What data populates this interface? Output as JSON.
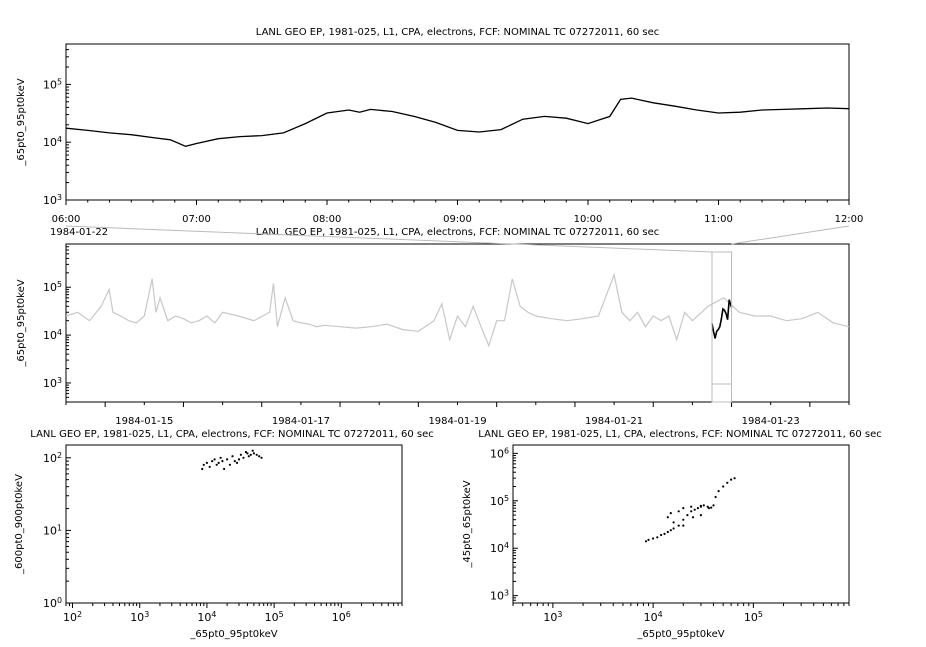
{
  "chart_data": [
    {
      "type": "line",
      "title": "LANL GEO EP, 1981-025, L1, CPA, electrons, FCF: NOMINAL TC 07272011, 60 sec",
      "ylabel": "_65pt0_95pt0keV",
      "xlabel": "",
      "yscale": "log",
      "ylim": [
        1000,
        500000
      ],
      "xlim": [
        "1984-01-22 06:00",
        "1984-01-22 12:00"
      ],
      "y_ticks": [
        "10^3",
        "10^4",
        "10^5"
      ],
      "x_ticks": [
        "06:00",
        "07:00",
        "08:00",
        "09:00",
        "10:00",
        "11:00",
        "12:00"
      ],
      "x_date_label": "1984-01-22",
      "series": [
        {
          "color": "#000000",
          "x": [
            "06:00",
            "06:10",
            "06:20",
            "06:30",
            "06:40",
            "06:48",
            "06:55",
            "07:00",
            "07:10",
            "07:20",
            "07:30",
            "07:40",
            "07:50",
            "08:00",
            "08:10",
            "08:15",
            "08:20",
            "08:30",
            "08:40",
            "08:50",
            "09:00",
            "09:10",
            "09:20",
            "09:30",
            "09:40",
            "09:50",
            "10:00",
            "10:10",
            "10:15",
            "10:20",
            "10:30",
            "10:40",
            "10:50",
            "11:00",
            "11:10",
            "11:20",
            "11:30",
            "11:40",
            "11:50",
            "12:00"
          ],
          "y": [
            17500,
            16000,
            14500,
            13500,
            12000,
            11000,
            8500,
            9500,
            11500,
            12500,
            13000,
            14500,
            21000,
            32000,
            36000,
            33000,
            37000,
            34000,
            28000,
            22000,
            16000,
            15000,
            16500,
            25000,
            28000,
            26000,
            21000,
            28000,
            55000,
            58000,
            48000,
            42000,
            36000,
            32000,
            33000,
            36000,
            37000,
            38000,
            39000,
            38000
          ]
        }
      ]
    },
    {
      "type": "line",
      "title": "LANL GEO EP, 1981-025, L1, CPA, electrons, FCF: NOMINAL TC 07272011, 60 sec",
      "ylabel": "_65pt0_95pt0keV",
      "xlabel": "",
      "yscale": "log",
      "ylim": [
        400,
        800000
      ],
      "xlim": [
        "1984-01-14",
        "1984-01-24"
      ],
      "x_ticks": [
        "1984-01-15",
        "1984-01-17",
        "1984-01-19",
        "1984-01-21",
        "1984-01-23"
      ],
      "y_ticks": [
        "10^3",
        "10^4",
        "10^5"
      ],
      "series": [
        {
          "name": "",
          "color": "#c8c8c8",
          "x_days": [
            0,
            0.15,
            0.3,
            0.45,
            0.55,
            0.6,
            0.7,
            0.8,
            0.9,
            1.0,
            1.1,
            1.15,
            1.2,
            1.3,
            1.4,
            1.5,
            1.6,
            1.7,
            1.8,
            1.9,
            2.0,
            2.2,
            2.4,
            2.6,
            2.65,
            2.7,
            2.8,
            2.9,
            3.0,
            3.1,
            3.2,
            3.3,
            3.5,
            3.7,
            3.9,
            4.1,
            4.3,
            4.5,
            4.7,
            4.8,
            4.9,
            5.0,
            5.1,
            5.2,
            5.3,
            5.4,
            5.5,
            5.6,
            5.7,
            5.8,
            5.9,
            6.0,
            6.2,
            6.4,
            6.6,
            6.8,
            7.0,
            7.1,
            7.2,
            7.3,
            7.4,
            7.5,
            7.6,
            7.7,
            7.8,
            7.9,
            8.0,
            8.2,
            8.4,
            8.6,
            8.8,
            9.0,
            9.2,
            9.4,
            9.6,
            9.8,
            10.0
          ],
          "y": [
            25000,
            30000,
            20000,
            40000,
            90000,
            30000,
            25000,
            20000,
            18000,
            25000,
            150000,
            30000,
            60000,
            20000,
            25000,
            22000,
            18000,
            20000,
            25000,
            18000,
            30000,
            25000,
            20000,
            30000,
            120000,
            15000,
            60000,
            20000,
            18000,
            17000,
            15000,
            16000,
            15000,
            14000,
            15000,
            17000,
            13000,
            12000,
            20000,
            45000,
            8000,
            25000,
            15000,
            40000,
            15000,
            6000,
            20000,
            20000,
            150000,
            40000,
            30000,
            25000,
            22000,
            20000,
            22000,
            25000,
            180000,
            30000,
            20000,
            30000,
            15000,
            25000,
            20000,
            25000,
            8000,
            30000,
            20000,
            40000,
            60000,
            30000,
            25000,
            25000,
            20000,
            22000,
            30000,
            18000,
            15000
          ]
        },
        {
          "name": "",
          "color": "#000000",
          "x_days": [
            8.25,
            8.27,
            8.29,
            8.31,
            8.33,
            8.35,
            8.37,
            8.39,
            8.41,
            8.43,
            8.45,
            8.47,
            8.5
          ],
          "y": [
            17500,
            12000,
            8500,
            12000,
            13000,
            15000,
            22000,
            35000,
            33000,
            28000,
            21000,
            55000,
            38000
          ]
        }
      ]
    },
    {
      "type": "scatter",
      "title": "LANL GEO EP, 1981-025, L1, CPA, electrons, FCF: NOMINAL TC 07272011, 60 sec",
      "xlabel": "_65pt0_95pt0keV",
      "ylabel": "_600pt0_900pt0keV",
      "xscale": "log",
      "yscale": "log",
      "xlim": [
        80,
        8000000
      ],
      "ylim": [
        1,
        150
      ],
      "x_ticks": [
        "10^2",
        "10^3",
        "10^4",
        "10^5",
        "10^6"
      ],
      "y_ticks": [
        "10^0",
        "10^1",
        "10^2"
      ],
      "points": [
        [
          8500,
          70
        ],
        [
          9000,
          80
        ],
        [
          10000,
          85
        ],
        [
          11000,
          75
        ],
        [
          12000,
          90
        ],
        [
          13000,
          95
        ],
        [
          14000,
          80
        ],
        [
          15000,
          85
        ],
        [
          16000,
          100
        ],
        [
          17000,
          90
        ],
        [
          18000,
          70
        ],
        [
          20000,
          95
        ],
        [
          22000,
          80
        ],
        [
          24000,
          105
        ],
        [
          26000,
          90
        ],
        [
          28000,
          85
        ],
        [
          30000,
          95
        ],
        [
          32000,
          110
        ],
        [
          35000,
          100
        ],
        [
          38000,
          120
        ],
        [
          40000,
          115
        ],
        [
          42000,
          105
        ],
        [
          45000,
          110
        ],
        [
          48000,
          125
        ],
        [
          50000,
          115
        ],
        [
          55000,
          110
        ],
        [
          60000,
          105
        ],
        [
          65000,
          100
        ]
      ]
    },
    {
      "type": "scatter",
      "title": "LANL GEO EP, 1981-025, L1, CPA, electrons, FCF: NOMINAL TC 07272011, 60 sec",
      "xlabel": "_65pt0_95pt0keV",
      "ylabel": "_45pt0_65pt0keV",
      "xscale": "log",
      "yscale": "log",
      "xlim": [
        400,
        900000
      ],
      "ylim": [
        700,
        1500000
      ],
      "x_ticks": [
        "10^3",
        "10^4",
        "10^5"
      ],
      "y_ticks": [
        "10^3",
        "10^4",
        "10^5",
        "10^6"
      ],
      "points": [
        [
          8500,
          14000
        ],
        [
          9000,
          15000
        ],
        [
          10000,
          16000
        ],
        [
          11000,
          17000
        ],
        [
          12000,
          19000
        ],
        [
          13000,
          20000
        ],
        [
          14000,
          22000
        ],
        [
          15000,
          24000
        ],
        [
          16000,
          26000
        ],
        [
          18000,
          30000
        ],
        [
          20000,
          40000
        ],
        [
          22000,
          50000
        ],
        [
          24000,
          60000
        ],
        [
          26000,
          65000
        ],
        [
          28000,
          70000
        ],
        [
          30000,
          75000
        ],
        [
          32000,
          80000
        ],
        [
          35000,
          75000
        ],
        [
          38000,
          72000
        ],
        [
          40000,
          80000
        ],
        [
          42000,
          120000
        ],
        [
          45000,
          160000
        ],
        [
          50000,
          200000
        ],
        [
          55000,
          240000
        ],
        [
          60000,
          280000
        ],
        [
          65000,
          300000
        ],
        [
          30000,
          50000
        ],
        [
          25000,
          45000
        ],
        [
          20000,
          30000
        ],
        [
          16000,
          35000
        ],
        [
          14000,
          45000
        ],
        [
          15000,
          55000
        ],
        [
          18000,
          60000
        ],
        [
          20000,
          70000
        ],
        [
          24000,
          75000
        ],
        [
          30000,
          78000
        ],
        [
          36000,
          70000
        ]
      ]
    }
  ]
}
